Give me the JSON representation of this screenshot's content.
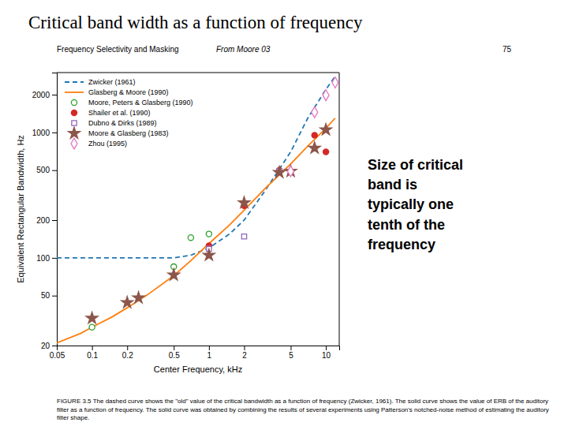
{
  "chart_data": {
    "type": "line",
    "title": "Critical band width as a function of frequency",
    "subtitle": "Frequency Selectivity and Masking",
    "annotations": [
      "From Moore 03",
      "75",
      "Size of critical\nband is\ntypically one\ntenth of the\nfrequency",
      "FIGURE 3.5   The dashed curve shows the \"old\" value of the critical bandwidth as a function of frequency (Zwicker, 1961). The solid curve shows the value of ERB of the auditory filter as a function of frequency. The solid curve was obtained by combining the results of several experiments using Patterson's notched-noise method of estimating the auditory filter shape."
    ],
    "xlabel": "Center Frequency, kHz",
    "ylabel": "Equivalent Rectangular Bandwidth, Hz",
    "log": true,
    "xlim": [
      0.05,
      13
    ],
    "ylim": [
      20,
      3000
    ],
    "xticks": [
      0.05,
      0.1,
      0.2,
      0.5,
      1,
      2,
      5,
      10
    ],
    "yticks": [
      20,
      50,
      100,
      200,
      500,
      1000,
      2000
    ],
    "legend": "upper left",
    "series": [
      {
        "name": "Zwicker (1961)",
        "type": "line",
        "line_style": "dashed",
        "x": [
          0.05,
          0.08,
          0.1,
          0.15,
          0.2,
          0.3,
          0.5,
          0.7,
          1.0,
          1.5,
          2.0,
          3.0,
          5.0,
          7.0,
          10.0,
          12.0
        ],
        "values": [
          100,
          100,
          100,
          100,
          100,
          100,
          100,
          105,
          120,
          155,
          200,
          340,
          700,
          1300,
          2200,
          2800
        ]
      },
      {
        "name": "Glasberg & Moore (1990)",
        "type": "line",
        "line_style": "solid",
        "x": [
          0.05,
          0.08,
          0.1,
          0.15,
          0.2,
          0.3,
          0.5,
          0.7,
          1.0,
          1.5,
          2.0,
          3.0,
          5.0,
          7.0,
          10.0,
          12.0
        ],
        "values": [
          21,
          25,
          28,
          34,
          40,
          51,
          72,
          95,
          130,
          183,
          240,
          355,
          560,
          780,
          1080,
          1300
        ]
      },
      {
        "name": "Moore, Peters & Glasberg (1990)",
        "type": "scatter",
        "marker": "open-circle",
        "x": [
          0.1,
          0.5,
          0.7,
          1.0
        ],
        "values": [
          28,
          85,
          145,
          155
        ]
      },
      {
        "name": "Shailer et al. (1990)",
        "type": "scatter",
        "marker": "circle",
        "x": [
          1.0,
          2.0,
          4.0,
          8.0,
          10.0
        ],
        "values": [
          125,
          260,
          500,
          950,
          700
        ]
      },
      {
        "name": "Dubno & Dirks (1989)",
        "type": "scatter",
        "marker": "open-square",
        "x": [
          1.0,
          2.0,
          4.0
        ],
        "values": [
          118,
          148,
          490
        ]
      },
      {
        "name": "Moore & Glasberg (1983)",
        "type": "scatter",
        "marker": "star",
        "x": [
          0.1,
          0.2,
          0.25,
          0.5,
          1.0,
          2.0,
          4.0,
          5.0,
          8.0,
          10.0
        ],
        "values": [
          33,
          44,
          48,
          73,
          105,
          275,
          480,
          490,
          750,
          1050
        ]
      },
      {
        "name": "Zhou (1995)",
        "type": "scatter",
        "marker": "open-diamond",
        "x": [
          5.0,
          8.0,
          10.0,
          12.0
        ],
        "values": [
          490,
          1450,
          1980,
          2500
        ]
      }
    ]
  }
}
